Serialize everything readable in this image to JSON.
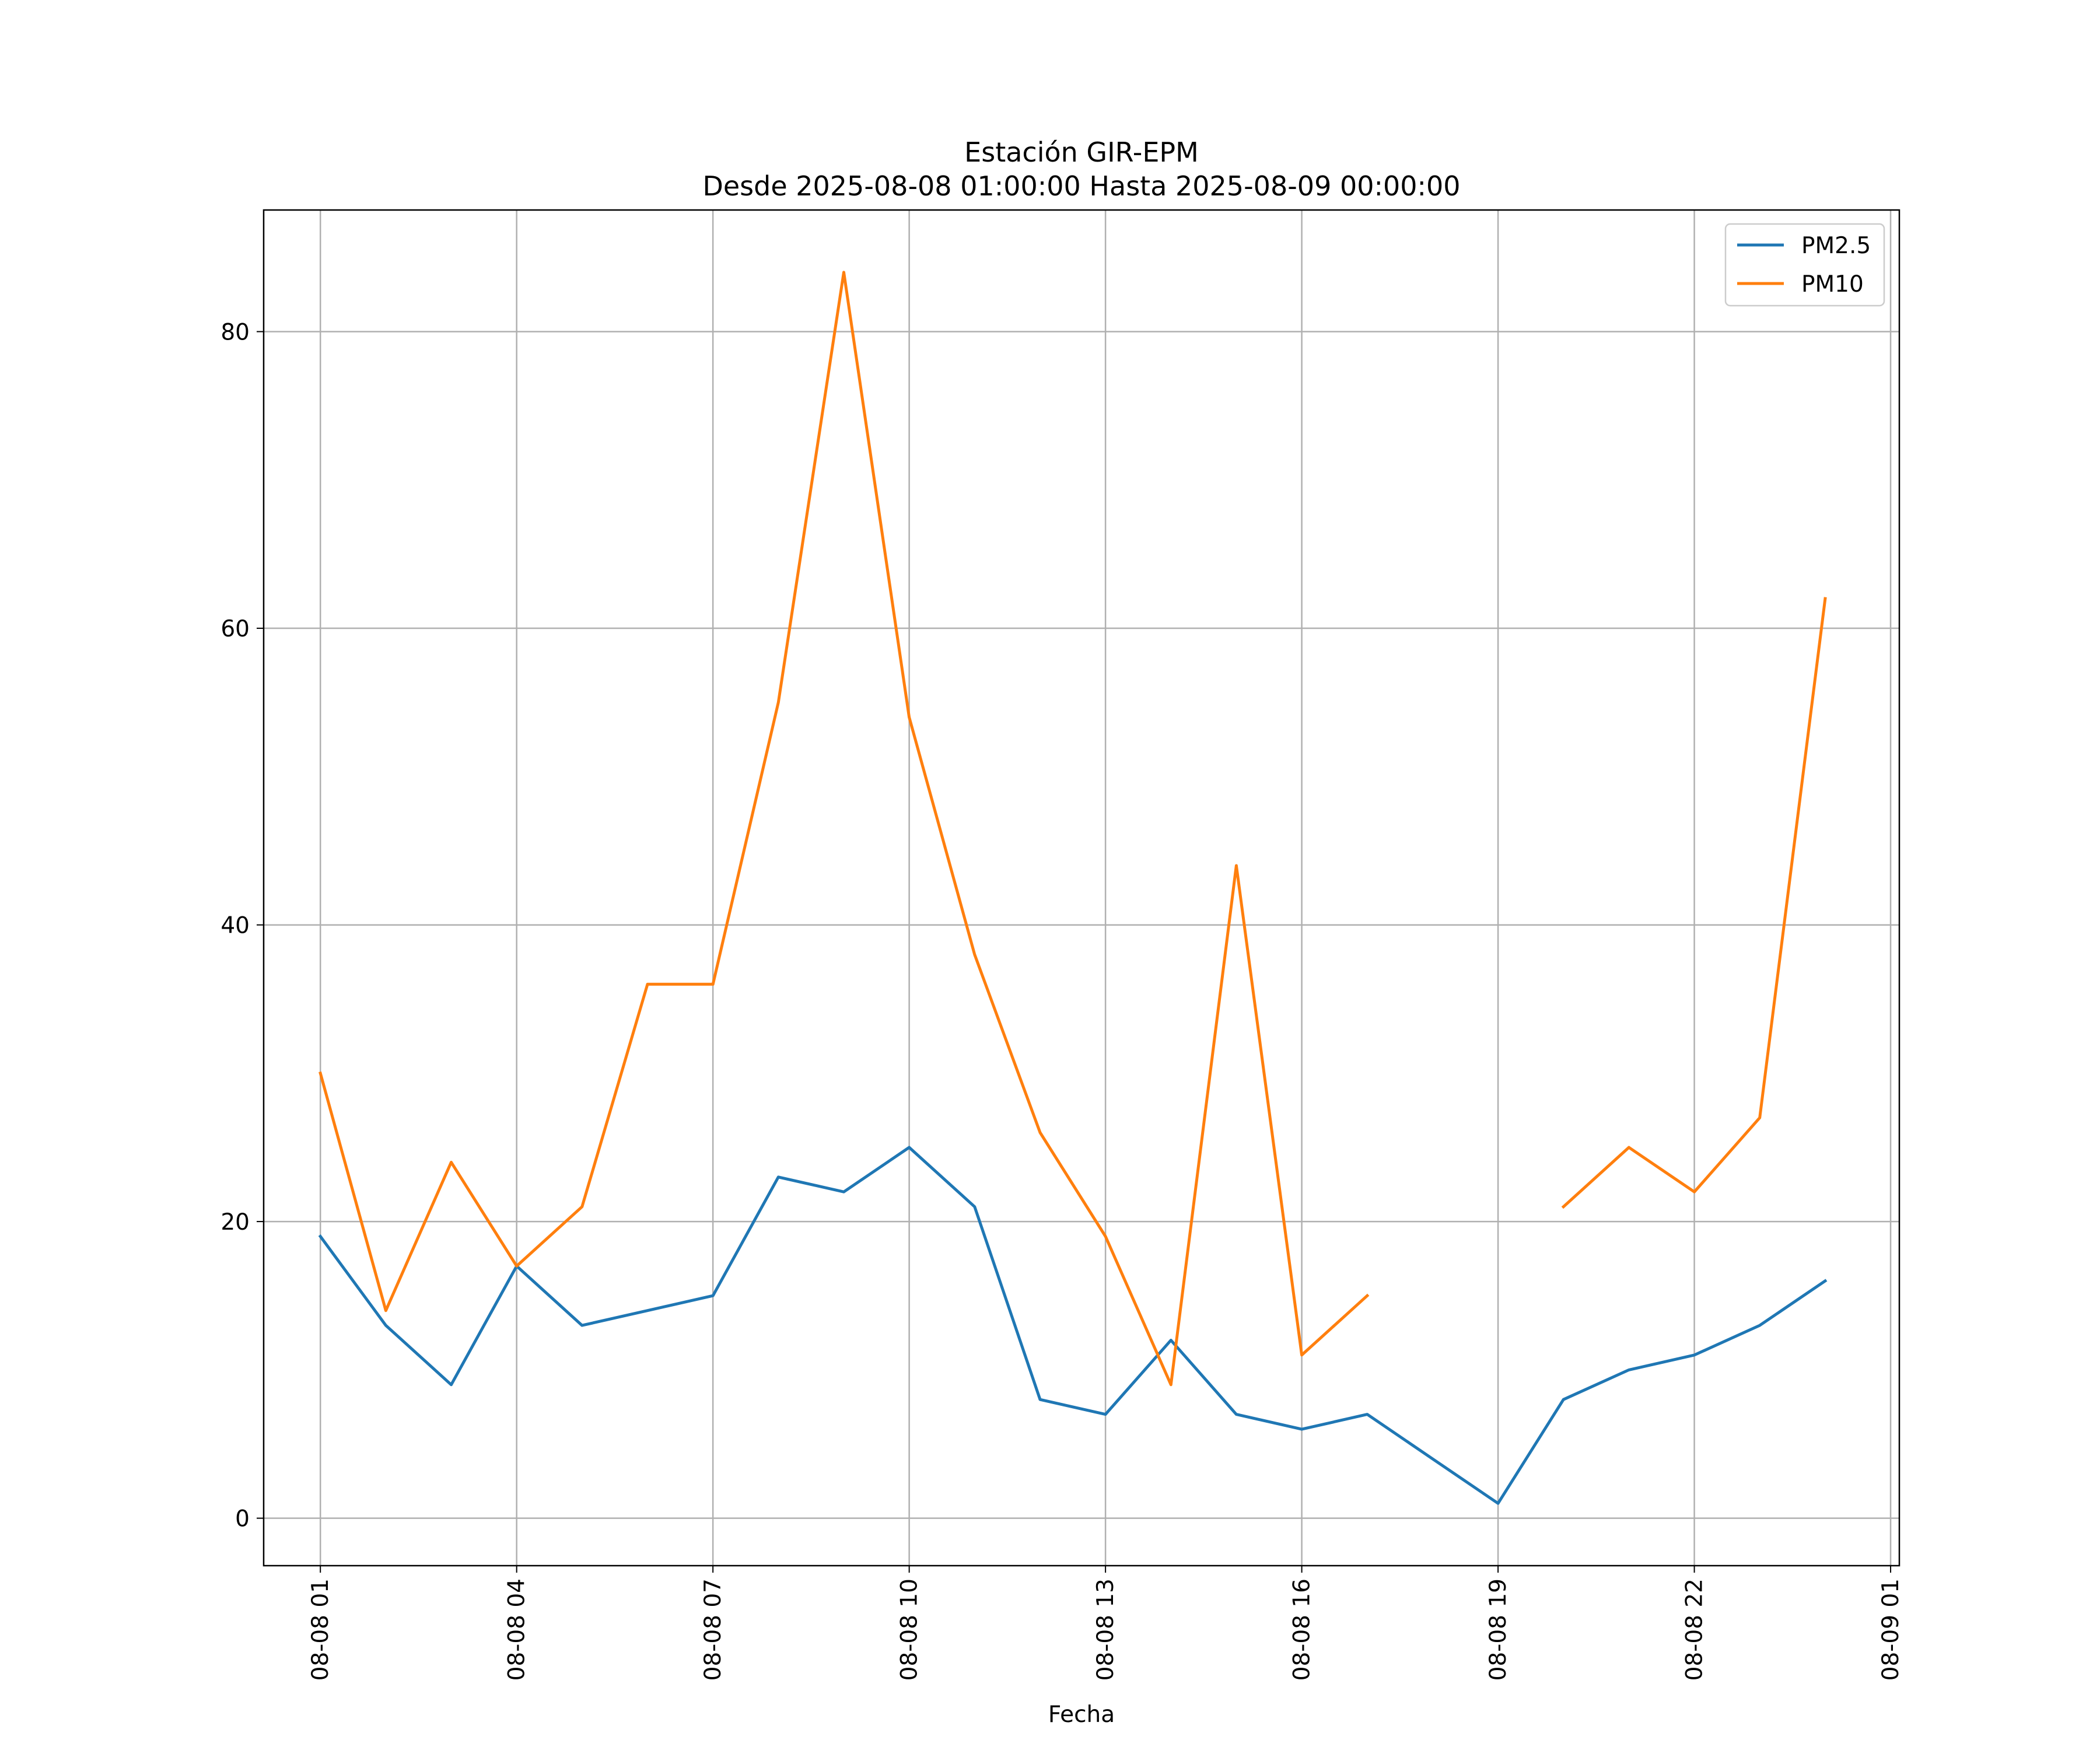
{
  "chart_data": {
    "type": "line",
    "title": "Estación GIR-EPM",
    "subtitle": "Desde 2025-08-08 01:00:00 Hasta 2025-08-09 00:00:00",
    "xlabel": "Fecha",
    "ylabel": "",
    "x": [
      "2025-08-08 01:00",
      "2025-08-08 02:00",
      "2025-08-08 03:00",
      "2025-08-08 04:00",
      "2025-08-08 05:00",
      "2025-08-08 06:00",
      "2025-08-08 07:00",
      "2025-08-08 08:00",
      "2025-08-08 09:00",
      "2025-08-08 10:00",
      "2025-08-08 11:00",
      "2025-08-08 12:00",
      "2025-08-08 13:00",
      "2025-08-08 14:00",
      "2025-08-08 15:00",
      "2025-08-08 16:00",
      "2025-08-08 17:00",
      "2025-08-08 18:00",
      "2025-08-08 19:00",
      "2025-08-08 20:00",
      "2025-08-08 21:00",
      "2025-08-08 22:00",
      "2025-08-08 23:00",
      "2025-08-09 00:00"
    ],
    "series": [
      {
        "name": "PM2.5",
        "color": "#1f77b4",
        "values": [
          19,
          13,
          9,
          17,
          13,
          14,
          15,
          23,
          22,
          25,
          21,
          8,
          7,
          12,
          7,
          6,
          7,
          4,
          1,
          8,
          10,
          11,
          13,
          16
        ]
      },
      {
        "name": "PM10",
        "color": "#ff7f0e",
        "values": [
          30,
          14,
          24,
          17,
          21,
          36,
          36,
          55,
          84,
          54,
          38,
          26,
          19,
          9,
          44,
          11,
          15,
          null,
          null,
          21,
          25,
          22,
          27,
          62
        ]
      }
    ],
    "xticks": [
      "2025-08-08 01:00",
      "2025-08-08 04:00",
      "2025-08-08 07:00",
      "2025-08-08 10:00",
      "2025-08-08 13:00",
      "2025-08-08 16:00",
      "2025-08-08 19:00",
      "2025-08-08 22:00",
      "2025-08-09 01:00"
    ],
    "xtick_labels": [
      "08-08 01",
      "08-08 04",
      "08-08 07",
      "08-08 10",
      "08-08 13",
      "08-08 16",
      "08-08 19",
      "08-08 22",
      "08-09 01"
    ],
    "yticks": [
      0,
      20,
      40,
      60,
      80
    ],
    "ytick_labels": [
      "0",
      "20",
      "40",
      "60",
      "80"
    ],
    "ylim": [
      -3.2,
      88.2
    ],
    "xlim": [
      "2025-08-08 00:08",
      "2025-08-09 01:08"
    ],
    "grid": true,
    "legend_position": "top-right"
  }
}
